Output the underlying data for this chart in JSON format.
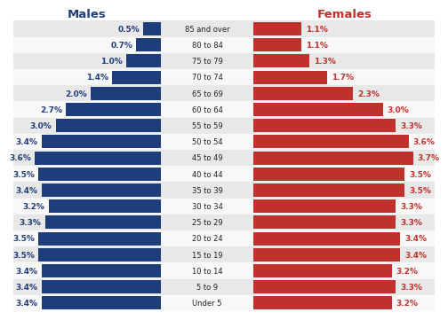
{
  "age_groups": [
    "85 and over",
    "80 to 84",
    "75 to 79",
    "70 to 74",
    "65 to 69",
    "60 to 64",
    "55 to 59",
    "50 to 54",
    "45 to 49",
    "40 to 44",
    "35 to 39",
    "30 to 34",
    "25 to 29",
    "20 to 24",
    "15 to 19",
    "10 to 14",
    "5 to 9",
    "Under 5"
  ],
  "males": [
    0.5,
    0.7,
    1.0,
    1.4,
    2.0,
    2.7,
    3.0,
    3.4,
    3.6,
    3.5,
    3.4,
    3.2,
    3.3,
    3.5,
    3.5,
    3.4,
    3.4,
    3.4
  ],
  "females": [
    1.1,
    1.1,
    1.3,
    1.7,
    2.3,
    3.0,
    3.3,
    3.6,
    3.7,
    3.5,
    3.5,
    3.3,
    3.3,
    3.4,
    3.4,
    3.2,
    3.3,
    3.2
  ],
  "male_labels": [
    "0.5%",
    "0.7%",
    "1.0%",
    "1.4%",
    "2.0%",
    "2.7%",
    "3.0%",
    "3.4%",
    "3.6%",
    "3.5%",
    "3.4%",
    "3.2%",
    "3.3%",
    "3.5%",
    "3.5%",
    "3.4%",
    "3.4%",
    "3.4%"
  ],
  "female_labels": [
    "1.1%",
    "1.1%",
    "1.3%",
    "1.7%",
    "2.3%",
    "3.0%",
    "3.3%",
    "3.6%",
    "3.7%",
    "3.5%",
    "3.5%",
    "3.3%",
    "3.3%",
    "3.4%",
    "3.4%",
    "3.2%",
    "3.3%",
    "3.2%"
  ],
  "male_color": "#1f3d7a",
  "female_color": "#c0312b",
  "male_label_color": "#1f3d7a",
  "female_label_color": "#c0312b",
  "title_male": "Males",
  "title_female": "Females",
  "bg_color_odd": "#e8e8e8",
  "bg_color_even": "#f8f8f8",
  "xlim": 4.2,
  "label_fontsize": 6.5,
  "title_fontsize": 9.5
}
